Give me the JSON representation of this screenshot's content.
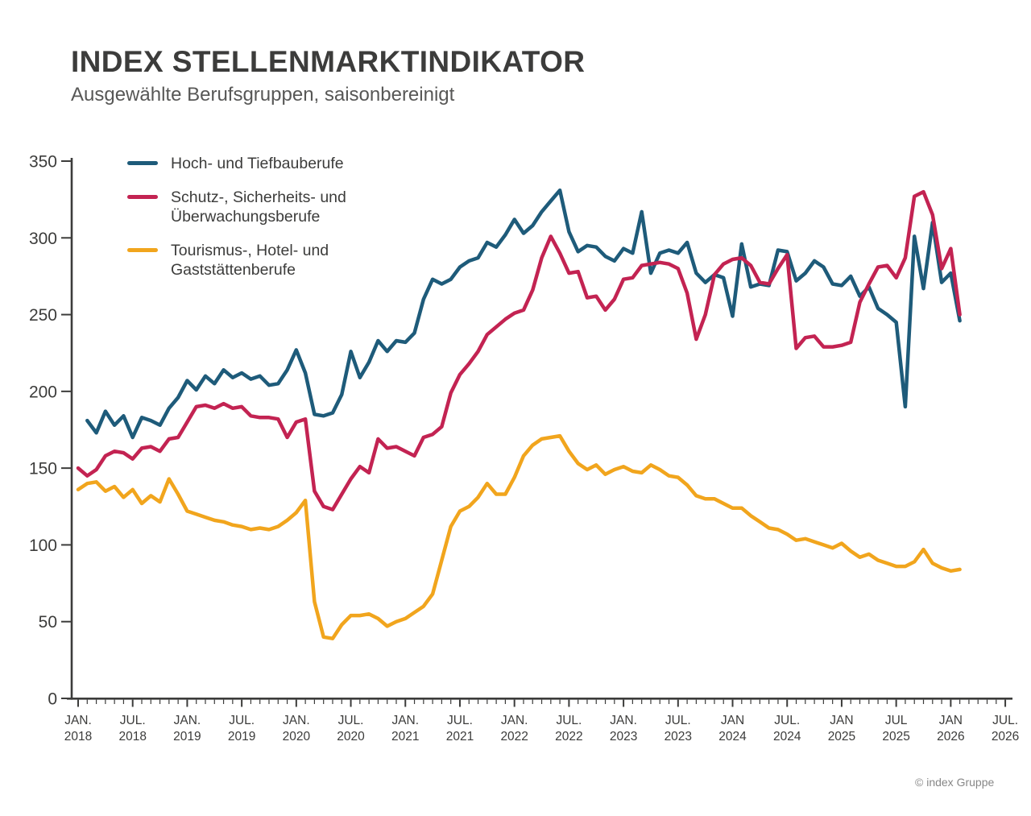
{
  "header": {
    "title": "INDEX STELLENMARKTINDIKATOR",
    "subtitle": "Ausgewählte Berufsgruppen, saisonbereinigt"
  },
  "footer": {
    "copyright": "© index Gruppe"
  },
  "chart_data": {
    "type": "line",
    "title": "INDEX STELLENMARKTINDIKATOR",
    "subtitle": "Ausgewählte Berufsgruppen, saisonbereinigt",
    "interval": "monthly",
    "x_start": "JAN. 2018",
    "x_end_of_data": "FEB. 2026",
    "ylim": [
      0,
      350
    ],
    "y_ticks": [
      0,
      50,
      100,
      150,
      200,
      250,
      300,
      350
    ],
    "grid": false,
    "legend_position": "top-left",
    "axis_color": "#3c3c3b",
    "x_ticks": [
      {
        "month": "JAN.",
        "year": "2018",
        "idx": 0
      },
      {
        "month": "JUL.",
        "year": "2018",
        "idx": 6
      },
      {
        "month": "JAN.",
        "year": "2019",
        "idx": 12
      },
      {
        "month": "JUL.",
        "year": "2019",
        "idx": 18
      },
      {
        "month": "JAN.",
        "year": "2020",
        "idx": 24
      },
      {
        "month": "JUL.",
        "year": "2020",
        "idx": 30
      },
      {
        "month": "JAN.",
        "year": "2021",
        "idx": 36
      },
      {
        "month": "JUL.",
        "year": "2021",
        "idx": 42
      },
      {
        "month": "JAN.",
        "year": "2022",
        "idx": 48
      },
      {
        "month": "JUL.",
        "year": "2022",
        "idx": 54
      },
      {
        "month": "JAN.",
        "year": "2023",
        "idx": 60
      },
      {
        "month": "JUL.",
        "year": "2023",
        "idx": 66
      },
      {
        "month": "JAN",
        "year": "2024",
        "idx": 72
      },
      {
        "month": "JUL.",
        "year": "2024",
        "idx": 78
      },
      {
        "month": "JAN",
        "year": "2025",
        "idx": 84
      },
      {
        "month": "JUL",
        "year": "2025",
        "idx": 90
      },
      {
        "month": "JAN",
        "year": "2026",
        "idx": 96
      },
      {
        "month": "JUL.",
        "year": "2026",
        "idx": 102
      }
    ],
    "series": [
      {
        "name": "Hoch- und Tiefbauberufe",
        "color": "#1e5b7a",
        "values": [
          null,
          181,
          173,
          187,
          178,
          184,
          170,
          183,
          181,
          178,
          189,
          196,
          207,
          201,
          210,
          205,
          214,
          209,
          212,
          208,
          210,
          204,
          205,
          214,
          227,
          212,
          185,
          184,
          186,
          198,
          226,
          209,
          219,
          233,
          226,
          233,
          232,
          238,
          260,
          273,
          270,
          273,
          281,
          285,
          287,
          297,
          294,
          302,
          312,
          303,
          308,
          317,
          324,
          331,
          304,
          291,
          295,
          294,
          288,
          285,
          293,
          290,
          317,
          277,
          290,
          292,
          290,
          297,
          277,
          271,
          276,
          274,
          249,
          296,
          268,
          270,
          269,
          292,
          291,
          272,
          277,
          285,
          281,
          270,
          269,
          275,
          262,
          268,
          254,
          250,
          245,
          190,
          301,
          267,
          310,
          271,
          277,
          246
        ]
      },
      {
        "name": "Schutz-, Sicherheits- und Überwachungsberufe",
        "color": "#c32352",
        "values": [
          150,
          145,
          149,
          158,
          161,
          160,
          156,
          163,
          164,
          161,
          169,
          170,
          180,
          190,
          191,
          189,
          192,
          189,
          190,
          184,
          183,
          183,
          182,
          170,
          180,
          182,
          135,
          125,
          123,
          133,
          143,
          151,
          147,
          169,
          163,
          164,
          161,
          158,
          170,
          172,
          177,
          199,
          211,
          218,
          226,
          237,
          242,
          247,
          251,
          253,
          266,
          287,
          301,
          290,
          277,
          278,
          261,
          262,
          253,
          260,
          273,
          274,
          282,
          283,
          284,
          283,
          280,
          264,
          234,
          250,
          276,
          283,
          286,
          287,
          282,
          271,
          270,
          280,
          289,
          228,
          235,
          236,
          229,
          229,
          230,
          232,
          258,
          270,
          281,
          282,
          274,
          287,
          327,
          330,
          315,
          280,
          293,
          250
        ]
      },
      {
        "name": "Tourismus-, Hotel- und Gaststättenberufe",
        "color": "#f1a51d",
        "values": [
          136,
          140,
          141,
          135,
          138,
          131,
          136,
          127,
          132,
          128,
          143,
          133,
          122,
          120,
          118,
          116,
          115,
          113,
          112,
          110,
          111,
          110,
          112,
          116,
          121,
          129,
          63,
          40,
          39,
          48,
          54,
          54,
          55,
          52,
          47,
          50,
          52,
          56,
          60,
          68,
          90,
          112,
          122,
          125,
          131,
          140,
          133,
          133,
          144,
          158,
          165,
          169,
          170,
          171,
          161,
          153,
          149,
          152,
          146,
          149,
          151,
          148,
          147,
          152,
          149,
          145,
          144,
          139,
          132,
          130,
          130,
          127,
          124,
          124,
          119,
          115,
          111,
          110,
          107,
          103,
          104,
          102,
          100,
          98,
          101,
          96,
          92,
          94,
          90,
          88,
          86,
          86,
          89,
          97,
          88,
          85,
          83,
          84
        ]
      }
    ]
  }
}
